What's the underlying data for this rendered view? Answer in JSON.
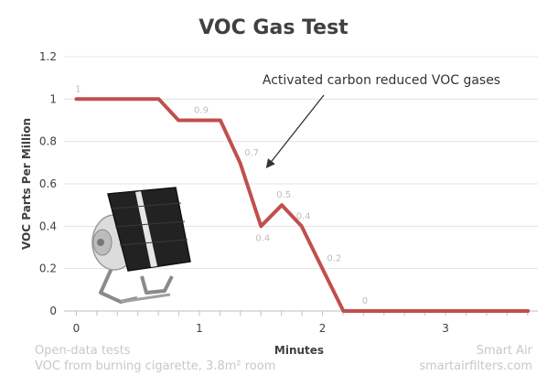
{
  "chart_data": {
    "type": "line",
    "title": "VOC Gas Test",
    "xlabel": "Minutes",
    "ylabel": "VOC Parts Per Million",
    "xlim": [
      -0.1,
      3.75
    ],
    "ylim": [
      0,
      1.2
    ],
    "x_ticks": [
      0,
      1,
      2,
      3
    ],
    "y_ticks": [
      "0",
      "0.2",
      "0.4",
      "0.6",
      "0.8",
      "1",
      "1.2"
    ],
    "grid": "horizontal",
    "series": [
      {
        "color": "#c0504d",
        "x": [
          0,
          0.67,
          0.83,
          1.17,
          1.33,
          1.5,
          1.67,
          1.83,
          2.0,
          2.17,
          3.67
        ],
        "y": [
          1,
          1,
          0.9,
          0.9,
          0.7,
          0.4,
          0.5,
          0.4,
          0.2,
          0,
          0
        ],
        "data_labels": [
          {
            "x": 0,
            "y": 1,
            "text": "1"
          },
          {
            "x": 1.0,
            "y": 0.9,
            "text": "0.9"
          },
          {
            "x": 1.41,
            "y": 0.7,
            "text": "0.7"
          },
          {
            "x": 1.5,
            "y": 0.4,
            "text": "0.4"
          },
          {
            "x": 1.67,
            "y": 0.5,
            "text": "0.5"
          },
          {
            "x": 1.83,
            "y": 0.4,
            "text": "0.4"
          },
          {
            "x": 2.08,
            "y": 0.2,
            "text": "0.2"
          },
          {
            "x": 2.33,
            "y": 0,
            "text": "0"
          }
        ]
      }
    ],
    "annotation": {
      "text": "Activated carbon reduced VOC gases",
      "arrow_to": {
        "x": 1.55,
        "y": 0.68
      }
    }
  },
  "footer": {
    "left_line1": "Open-data tests",
    "left_line2": "VOC from burning cigarette, 3.8m² room",
    "right_line1": "Smart Air",
    "right_line2": "smartairfilters.com"
  },
  "image": {
    "description_name": "air-purifier-fan-image"
  }
}
